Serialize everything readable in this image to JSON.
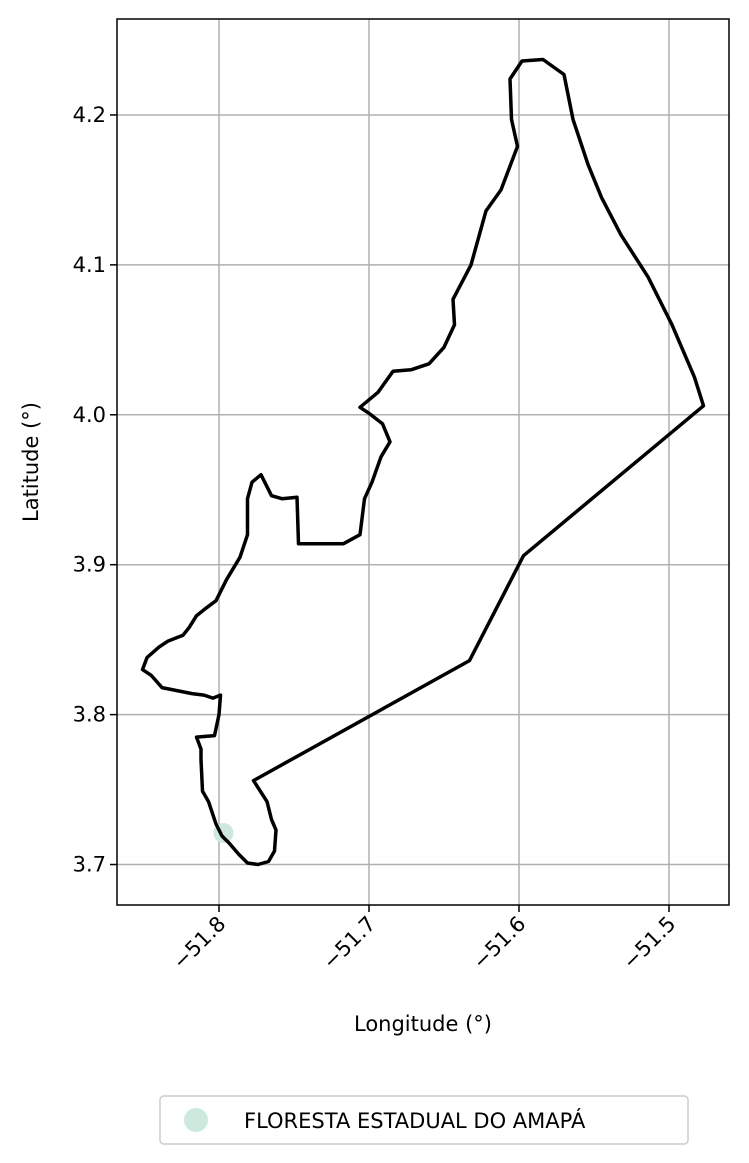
{
  "chart_data": {
    "type": "map",
    "xlabel": "Longitude (°)",
    "ylabel": "Latitude (°)",
    "xlim": [
      -51.868,
      -51.46
    ],
    "ylim": [
      3.673,
      4.264
    ],
    "xticks": [
      -51.8,
      -51.7,
      -51.6,
      -51.5
    ],
    "xtick_labels": [
      "−51.8",
      "−51.7",
      "−51.6",
      "−51.5"
    ],
    "yticks": [
      3.7,
      3.8,
      3.9,
      4.0,
      4.1,
      4.2
    ],
    "ytick_labels": [
      "3.7",
      "3.8",
      "3.9",
      "4.0",
      "4.1",
      "4.2"
    ],
    "grid": true,
    "legend_position": "bottom-center",
    "boundary": {
      "color": "#000000",
      "coordinates": [
        [
          -51.777,
          3.756
        ],
        [
          -51.768,
          3.742
        ],
        [
          -51.765,
          3.73
        ],
        [
          -51.762,
          3.723
        ],
        [
          -51.763,
          3.709
        ],
        [
          -51.767,
          3.702
        ],
        [
          -51.774,
          3.7
        ],
        [
          -51.781,
          3.701
        ],
        [
          -51.787,
          3.707
        ],
        [
          -51.793,
          3.714
        ],
        [
          -51.798,
          3.719
        ],
        [
          -51.802,
          3.727
        ],
        [
          -51.807,
          3.742
        ],
        [
          -51.811,
          3.749
        ],
        [
          -51.812,
          3.77
        ],
        [
          -51.812,
          3.777
        ],
        [
          -51.815,
          3.785
        ],
        [
          -51.803,
          3.786
        ],
        [
          -51.8,
          3.8
        ],
        [
          -51.799,
          3.813
        ],
        [
          -51.804,
          3.811
        ],
        [
          -51.81,
          3.813
        ],
        [
          -51.818,
          3.814
        ],
        [
          -51.828,
          3.816
        ],
        [
          -51.838,
          3.818
        ],
        [
          -51.845,
          3.826
        ],
        [
          -51.851,
          3.83
        ],
        [
          -51.848,
          3.838
        ],
        [
          -51.84,
          3.845
        ],
        [
          -51.834,
          3.849
        ],
        [
          -51.824,
          3.853
        ],
        [
          -51.82,
          3.858
        ],
        [
          -51.815,
          3.866
        ],
        [
          -51.81,
          3.87
        ],
        [
          -51.802,
          3.876
        ],
        [
          -51.795,
          3.89
        ],
        [
          -51.786,
          3.905
        ],
        [
          -51.781,
          3.92
        ],
        [
          -51.781,
          3.944
        ],
        [
          -51.778,
          3.955
        ],
        [
          -51.772,
          3.96
        ],
        [
          -51.765,
          3.946
        ],
        [
          -51.758,
          3.944
        ],
        [
          -51.748,
          3.945
        ],
        [
          -51.747,
          3.914
        ],
        [
          -51.717,
          3.914
        ],
        [
          -51.706,
          3.92
        ],
        [
          -51.703,
          3.944
        ],
        [
          -51.698,
          3.955
        ],
        [
          -51.692,
          3.972
        ],
        [
          -51.686,
          3.982
        ],
        [
          -51.691,
          3.994
        ],
        [
          -51.7,
          4.001
        ],
        [
          -51.706,
          4.005
        ],
        [
          -51.694,
          4.015
        ],
        [
          -51.684,
          4.029
        ],
        [
          -51.672,
          4.03
        ],
        [
          -51.66,
          4.034
        ],
        [
          -51.65,
          4.045
        ],
        [
          -51.643,
          4.06
        ],
        [
          -51.644,
          4.077
        ],
        [
          -51.632,
          4.1
        ],
        [
          -51.622,
          4.136
        ],
        [
          -51.612,
          4.15
        ],
        [
          -51.601,
          4.179
        ],
        [
          -51.605,
          4.197
        ],
        [
          -51.606,
          4.224
        ],
        [
          -51.598,
          4.236
        ],
        [
          -51.584,
          4.237
        ],
        [
          -51.57,
          4.227
        ],
        [
          -51.564,
          4.197
        ],
        [
          -51.554,
          4.167
        ],
        [
          -51.545,
          4.145
        ],
        [
          -51.532,
          4.12
        ],
        [
          -51.514,
          4.092
        ],
        [
          -51.498,
          4.06
        ],
        [
          -51.483,
          4.025
        ],
        [
          -51.477,
          4.006
        ],
        [
          -51.597,
          3.906
        ],
        [
          -51.633,
          3.836
        ],
        [
          -51.777,
          3.756
        ]
      ]
    },
    "legend": [
      {
        "label": "FLORESTA ESTADUAL DO AMAPÁ",
        "color": "#cde8dd"
      }
    ],
    "markers": [
      {
        "lon": -51.797,
        "lat": 3.721,
        "color": "#cde8dd"
      }
    ]
  }
}
